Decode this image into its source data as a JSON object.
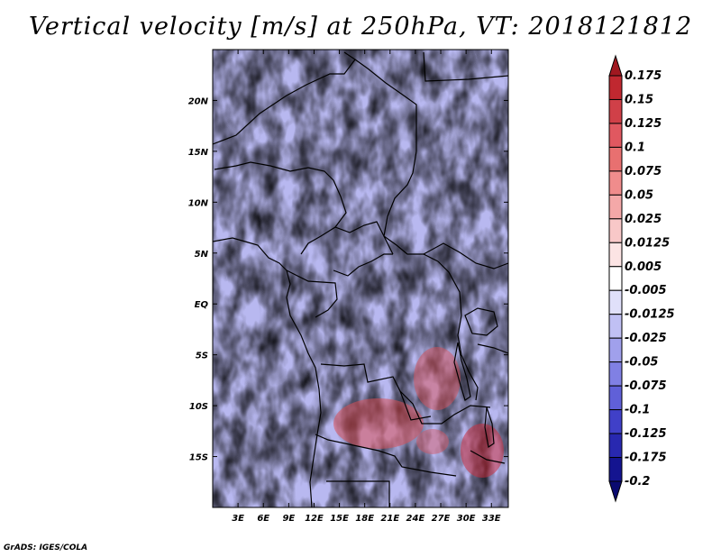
{
  "title": "Vertical velocity [m/s] at 250hPa, VT: 2018121812",
  "credit": "GrADS: IGES/COLA",
  "map": {
    "variable": "Vertical velocity",
    "units": "m/s",
    "level": "250hPa",
    "valid_time": "2018121812",
    "lon_range": [
      0,
      35
    ],
    "lat_range": [
      -20,
      25
    ],
    "lon_ticks": [
      "3E",
      "6E",
      "9E",
      "12E",
      "15E",
      "18E",
      "21E",
      "24E",
      "27E",
      "30E",
      "33E"
    ],
    "lat_ticks": [
      "20N",
      "15N",
      "10N",
      "5N",
      "EQ",
      "5S",
      "10S",
      "15S"
    ]
  },
  "colorbar": {
    "labels": [
      "0.175",
      "0.15",
      "0.125",
      "0.1",
      "0.075",
      "0.05",
      "0.025",
      "0.0125",
      "0.005",
      "-0.005",
      "-0.0125",
      "-0.025",
      "-0.05",
      "-0.075",
      "-0.1",
      "-0.125",
      "-0.175",
      "-0.2"
    ],
    "colors": [
      "#a01820",
      "#c02830",
      "#d04048",
      "#e05860",
      "#e87070",
      "#f08c8c",
      "#f4a8a8",
      "#f8c8c8",
      "#fce4e4",
      "#ffffff",
      "#e0e0fa",
      "#c0c0f4",
      "#a0a0ec",
      "#8080e4",
      "#6060d8",
      "#4040c8",
      "#2828b0",
      "#141490",
      "#0a0a70"
    ]
  }
}
